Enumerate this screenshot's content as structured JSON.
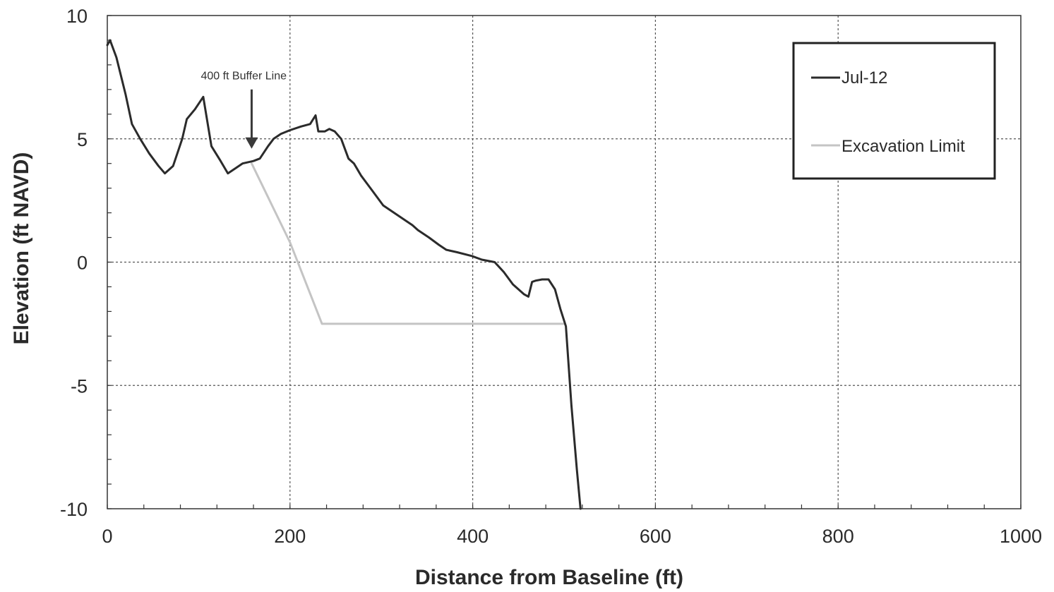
{
  "chart_data": {
    "type": "line",
    "xlabel": "Distance from Baseline (ft)",
    "ylabel": "Elevation (ft NAVD)",
    "xlim": [
      0,
      1000
    ],
    "ylim": [
      -10,
      10
    ],
    "x_ticks": [
      0,
      200,
      400,
      600,
      800,
      1000
    ],
    "y_ticks": [
      10,
      5,
      0,
      -5,
      -10
    ],
    "x_tick_labels": [
      "0",
      "200",
      "400",
      "600",
      "800",
      "1000"
    ],
    "y_tick_labels": [
      "10",
      "5",
      "0",
      "-5",
      "-10"
    ],
    "grid": true,
    "legend_position": "top-right",
    "annotation": {
      "text": "400 ft Buffer Line",
      "x": 158,
      "y": 4.6
    },
    "series": [
      {
        "name": "Jul-12",
        "color": "#2b2b2b",
        "x": [
          0,
          3,
          10,
          20,
          27,
          36,
          46,
          56,
          63,
          72,
          82,
          87,
          96,
          105,
          114,
          124,
          132,
          140,
          148,
          160,
          167,
          176,
          182,
          190,
          200,
          212,
          222,
          228,
          231,
          238,
          243,
          249,
          256,
          264,
          270,
          278,
          290,
          302,
          314,
          330,
          334,
          340,
          352,
          363,
          371,
          383,
          399,
          410,
          424,
          434,
          444,
          456,
          461,
          465,
          469,
          476,
          483,
          490,
          496,
          502,
          508,
          514,
          518
        ],
        "y": [
          8.8,
          9.0,
          8.3,
          6.8,
          5.6,
          5.0,
          4.4,
          3.9,
          3.6,
          3.9,
          5.0,
          5.8,
          6.2,
          6.7,
          4.7,
          4.1,
          3.6,
          3.8,
          4.0,
          4.1,
          4.2,
          4.7,
          5.0,
          5.2,
          5.35,
          5.5,
          5.6,
          5.95,
          5.3,
          5.3,
          5.4,
          5.3,
          5.0,
          4.2,
          4.0,
          3.5,
          2.9,
          2.3,
          2.0,
          1.6,
          1.5,
          1.3,
          1.0,
          0.7,
          0.5,
          0.4,
          0.25,
          0.1,
          0.0,
          -0.4,
          -0.9,
          -1.3,
          -1.4,
          -0.8,
          -0.75,
          -0.7,
          -0.7,
          -1.1,
          -1.9,
          -2.6,
          -5.8,
          -8.4,
          -10.0
        ]
      },
      {
        "name": "Excavation Limit",
        "color": "#c4c4c4",
        "x": [
          158,
          200,
          235,
          500
        ],
        "y": [
          4.0,
          0.8,
          -2.5,
          -2.5
        ]
      }
    ]
  }
}
